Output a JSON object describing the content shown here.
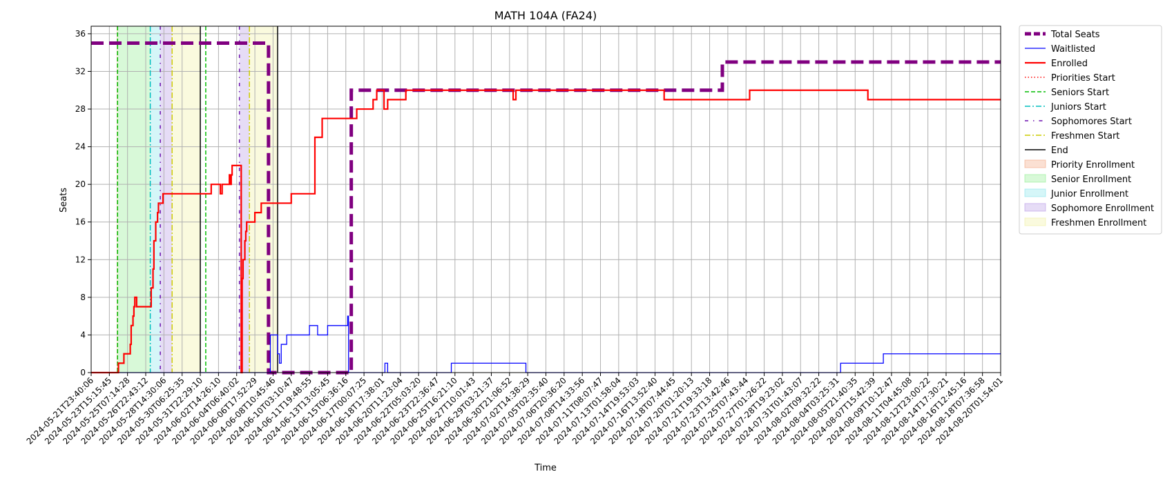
{
  "chart_data": {
    "type": "line",
    "title": "MATH 104A (FA24)",
    "xlabel": "Time",
    "ylabel": "Seats",
    "ylim": [
      0,
      36.8
    ],
    "yticks": [
      0,
      4,
      8,
      12,
      16,
      20,
      24,
      28,
      32,
      36
    ],
    "xlim": [
      "2024-05-21T23:40:06",
      "2024-08-20T01:54:01"
    ],
    "xtick_labels": [
      "2024-05-21T23:40:06",
      "2024-05-23T15:15:45",
      "2024-05-25T07:14:28",
      "2024-05-26T22:43:12",
      "2024-05-28T14:30:06",
      "2024-05-30T06:25:35",
      "2024-05-31T22:29:10",
      "2024-06-02T14:26:10",
      "2024-06-04T06:40:02",
      "2024-06-06T17:52:29",
      "2024-06-08T10:45:46",
      "2024-06-10T03:10:47",
      "2024-06-11T19:48:55",
      "2024-06-13T13:05:45",
      "2024-06-15T06:36:16",
      "2024-06-17T00:07:25",
      "2024-06-18T17:38:01",
      "2024-06-20T11:23:04",
      "2024-06-22T05:03:20",
      "2024-06-23T22:36:47",
      "2024-06-25T16:21:10",
      "2024-06-27T10:01:43",
      "2024-06-29T03:21:37",
      "2024-06-30T21:06:52",
      "2024-07-02T14:38:29",
      "2024-07-05T02:35:40",
      "2024-07-06T20:36:20",
      "2024-07-08T14:33:56",
      "2024-07-11T08:07:47",
      "2024-07-13T01:58:04",
      "2024-07-14T19:53:03",
      "2024-07-16T13:52:40",
      "2024-07-18T07:44:45",
      "2024-07-20T01:20:13",
      "2024-07-21T19:33:18",
      "2024-07-23T13:42:46",
      "2024-07-25T07:43:44",
      "2024-07-27T01:26:22",
      "2024-07-28T19:23:02",
      "2024-07-31T01:43:07",
      "2024-08-02T09:32:22",
      "2024-08-04T03:25:31",
      "2024-08-05T21:40:35",
      "2024-08-07T15:42:39",
      "2024-08-09T10:12:47",
      "2024-08-11T04:45:08",
      "2024-08-12T23:00:22",
      "2024-08-14T17:30:21",
      "2024-08-16T12:45:16",
      "2024-08-18T07:36:58",
      "2024-08-20T01:54:01"
    ],
    "grid": true,
    "legend_placement": "outside-upper-right",
    "series": [
      {
        "name": "Total Seats",
        "color": "#800080",
        "style": "dashed-thick",
        "points": [
          [
            0,
            35
          ],
          [
            9.75,
            35
          ],
          [
            9.75,
            0
          ],
          [
            14.3,
            0
          ],
          [
            14.3,
            30
          ],
          [
            34.7,
            30
          ],
          [
            34.7,
            33
          ],
          [
            50,
            33
          ]
        ]
      },
      {
        "name": "Waitlisted",
        "color": "#0000ff",
        "style": "solid-thin",
        "points": [
          [
            0,
            0
          ],
          [
            9.85,
            0
          ],
          [
            9.85,
            4
          ],
          [
            10.25,
            4
          ],
          [
            10.25,
            2
          ],
          [
            10.35,
            2
          ],
          [
            10.35,
            1
          ],
          [
            10.45,
            1
          ],
          [
            10.45,
            3
          ],
          [
            10.75,
            3
          ],
          [
            10.75,
            4
          ],
          [
            12.0,
            4
          ],
          [
            12.0,
            5
          ],
          [
            12.45,
            5
          ],
          [
            12.45,
            4
          ],
          [
            13.0,
            4
          ],
          [
            13.0,
            5
          ],
          [
            14.1,
            5
          ],
          [
            14.1,
            6
          ],
          [
            14.15,
            6
          ],
          [
            14.15,
            0
          ],
          [
            16.15,
            0
          ],
          [
            16.15,
            1
          ],
          [
            16.3,
            1
          ],
          [
            16.3,
            0
          ],
          [
            19.8,
            0
          ],
          [
            19.8,
            1
          ],
          [
            23.9,
            1
          ],
          [
            23.9,
            0
          ],
          [
            41.2,
            0
          ],
          [
            41.2,
            1
          ],
          [
            43.55,
            1
          ],
          [
            43.55,
            2
          ],
          [
            50,
            2
          ]
        ]
      },
      {
        "name": "Enrolled",
        "color": "#ff0000",
        "style": "solid-thick",
        "points": [
          [
            0,
            0
          ],
          [
            1.5,
            0
          ],
          [
            1.5,
            1
          ],
          [
            1.8,
            1
          ],
          [
            1.8,
            2
          ],
          [
            2.15,
            2
          ],
          [
            2.15,
            3
          ],
          [
            2.2,
            3
          ],
          [
            2.2,
            5
          ],
          [
            2.3,
            5
          ],
          [
            2.3,
            6
          ],
          [
            2.35,
            6
          ],
          [
            2.35,
            7
          ],
          [
            2.4,
            7
          ],
          [
            2.4,
            8
          ],
          [
            2.5,
            8
          ],
          [
            2.5,
            7
          ],
          [
            3.3,
            7
          ],
          [
            3.3,
            9
          ],
          [
            3.4,
            9
          ],
          [
            3.4,
            11
          ],
          [
            3.45,
            11
          ],
          [
            3.45,
            14
          ],
          [
            3.55,
            14
          ],
          [
            3.55,
            16
          ],
          [
            3.65,
            16
          ],
          [
            3.65,
            17
          ],
          [
            3.7,
            17
          ],
          [
            3.7,
            18
          ],
          [
            3.95,
            18
          ],
          [
            3.95,
            19
          ],
          [
            6.6,
            19
          ],
          [
            6.6,
            20
          ],
          [
            7.1,
            20
          ],
          [
            7.1,
            19
          ],
          [
            7.2,
            19
          ],
          [
            7.2,
            20
          ],
          [
            7.6,
            20
          ],
          [
            7.6,
            21
          ],
          [
            7.65,
            21
          ],
          [
            7.65,
            20
          ],
          [
            7.7,
            20
          ],
          [
            7.7,
            21
          ],
          [
            7.75,
            21
          ],
          [
            7.75,
            22
          ],
          [
            8.25,
            22
          ],
          [
            8.25,
            0
          ],
          [
            8.3,
            0
          ],
          [
            8.3,
            10
          ],
          [
            8.35,
            10
          ],
          [
            8.35,
            12
          ],
          [
            8.45,
            12
          ],
          [
            8.45,
            14
          ],
          [
            8.5,
            14
          ],
          [
            8.5,
            15
          ],
          [
            8.55,
            15
          ],
          [
            8.55,
            16
          ],
          [
            9.0,
            16
          ],
          [
            9.0,
            17
          ],
          [
            9.35,
            17
          ],
          [
            9.35,
            18
          ],
          [
            11.0,
            18
          ],
          [
            11.0,
            19
          ],
          [
            12.3,
            19
          ],
          [
            12.3,
            25
          ],
          [
            12.7,
            25
          ],
          [
            12.7,
            27
          ],
          [
            14.6,
            27
          ],
          [
            14.6,
            28
          ],
          [
            15.5,
            28
          ],
          [
            15.5,
            29
          ],
          [
            15.7,
            29
          ],
          [
            15.7,
            30
          ],
          [
            16.1,
            30
          ],
          [
            16.1,
            28
          ],
          [
            16.3,
            28
          ],
          [
            16.3,
            29
          ],
          [
            17.3,
            29
          ],
          [
            17.3,
            30
          ],
          [
            23.2,
            30
          ],
          [
            23.2,
            29
          ],
          [
            23.35,
            29
          ],
          [
            23.35,
            30
          ],
          [
            31.5,
            30
          ],
          [
            31.5,
            29
          ],
          [
            36.2,
            29
          ],
          [
            36.2,
            30
          ],
          [
            42.7,
            30
          ],
          [
            42.7,
            29
          ],
          [
            50,
            29
          ]
        ]
      }
    ],
    "vertical_markers": [
      {
        "name": "Priorities Start",
        "x": 1.45,
        "color": "#ff0000",
        "style": "dotted"
      },
      {
        "name": "Seniors Start",
        "x": 1.45,
        "color": "#00bb00",
        "style": "dashed"
      },
      {
        "name": "Juniors Start",
        "x": 3.25,
        "color": "#00bfbf",
        "style": "dashdot"
      },
      {
        "name": "Sophomores Start",
        "x": 3.8,
        "color": "#6a0dad",
        "style": "loose-dashdot"
      },
      {
        "name": "Freshmen Start",
        "x": 4.45,
        "color": "#cccc00",
        "style": "dashdot"
      },
      {
        "name": "End",
        "x": 6.0,
        "color": "#000000",
        "style": "solid"
      },
      {
        "name": "Seniors Start",
        "x": 6.3,
        "color": "#00bb00",
        "style": "dashed"
      },
      {
        "name": "Sophomores Start",
        "x": 8.15,
        "color": "#6a0dad",
        "style": "loose-dashdot"
      },
      {
        "name": "Freshmen Start",
        "x": 8.7,
        "color": "#cccc00",
        "style": "dashdot"
      },
      {
        "name": "End",
        "x": 10.25,
        "color": "#000000",
        "style": "solid"
      }
    ],
    "shaded_regions": [
      {
        "name": "Priority Enrollment",
        "x0": 1.4,
        "x1": 1.45,
        "color": "#f4a582"
      },
      {
        "name": "Senior Enrollment",
        "x0": 1.45,
        "x1": 3.25,
        "color": "#90ee90"
      },
      {
        "name": "Junior Enrollment",
        "x0": 3.25,
        "x1": 3.8,
        "color": "#87e5ec"
      },
      {
        "name": "Sophomore Enrollment",
        "x0": 3.8,
        "x1": 4.45,
        "color": "#b89ae6"
      },
      {
        "name": "Freshmen Enrollment",
        "x0": 4.45,
        "x1": 6.0,
        "color": "#f0f0a0"
      },
      {
        "name": "Sophomore Enrollment",
        "x0": 8.15,
        "x1": 8.7,
        "color": "#b89ae6"
      },
      {
        "name": "Freshmen Enrollment",
        "x0": 8.7,
        "x1": 10.25,
        "color": "#f0f0a0"
      }
    ],
    "legend": [
      {
        "label": "Total Seats",
        "kind": "line",
        "color": "#800080",
        "style": "dashed-thick"
      },
      {
        "label": "Waitlisted",
        "kind": "line",
        "color": "#0000ff",
        "style": "solid-thin"
      },
      {
        "label": "Enrolled",
        "kind": "line",
        "color": "#ff0000",
        "style": "solid-thick"
      },
      {
        "label": "Priorities Start",
        "kind": "line",
        "color": "#ff0000",
        "style": "dotted"
      },
      {
        "label": "Seniors Start",
        "kind": "line",
        "color": "#00bb00",
        "style": "dashed"
      },
      {
        "label": "Juniors Start",
        "kind": "line",
        "color": "#00bfbf",
        "style": "dashdot"
      },
      {
        "label": "Sophomores Start",
        "kind": "line",
        "color": "#6a0dad",
        "style": "loose-dashdot"
      },
      {
        "label": "Freshmen Start",
        "kind": "line",
        "color": "#cccc00",
        "style": "dashdot"
      },
      {
        "label": "End",
        "kind": "line",
        "color": "#000000",
        "style": "solid"
      },
      {
        "label": "Priority Enrollment",
        "kind": "patch",
        "color": "#f4a582"
      },
      {
        "label": "Senior Enrollment",
        "kind": "patch",
        "color": "#90ee90"
      },
      {
        "label": "Junior Enrollment",
        "kind": "patch",
        "color": "#87e5ec"
      },
      {
        "label": "Sophomore Enrollment",
        "kind": "patch",
        "color": "#b89ae6"
      },
      {
        "label": "Freshmen Enrollment",
        "kind": "patch",
        "color": "#f0f0a0"
      }
    ]
  }
}
